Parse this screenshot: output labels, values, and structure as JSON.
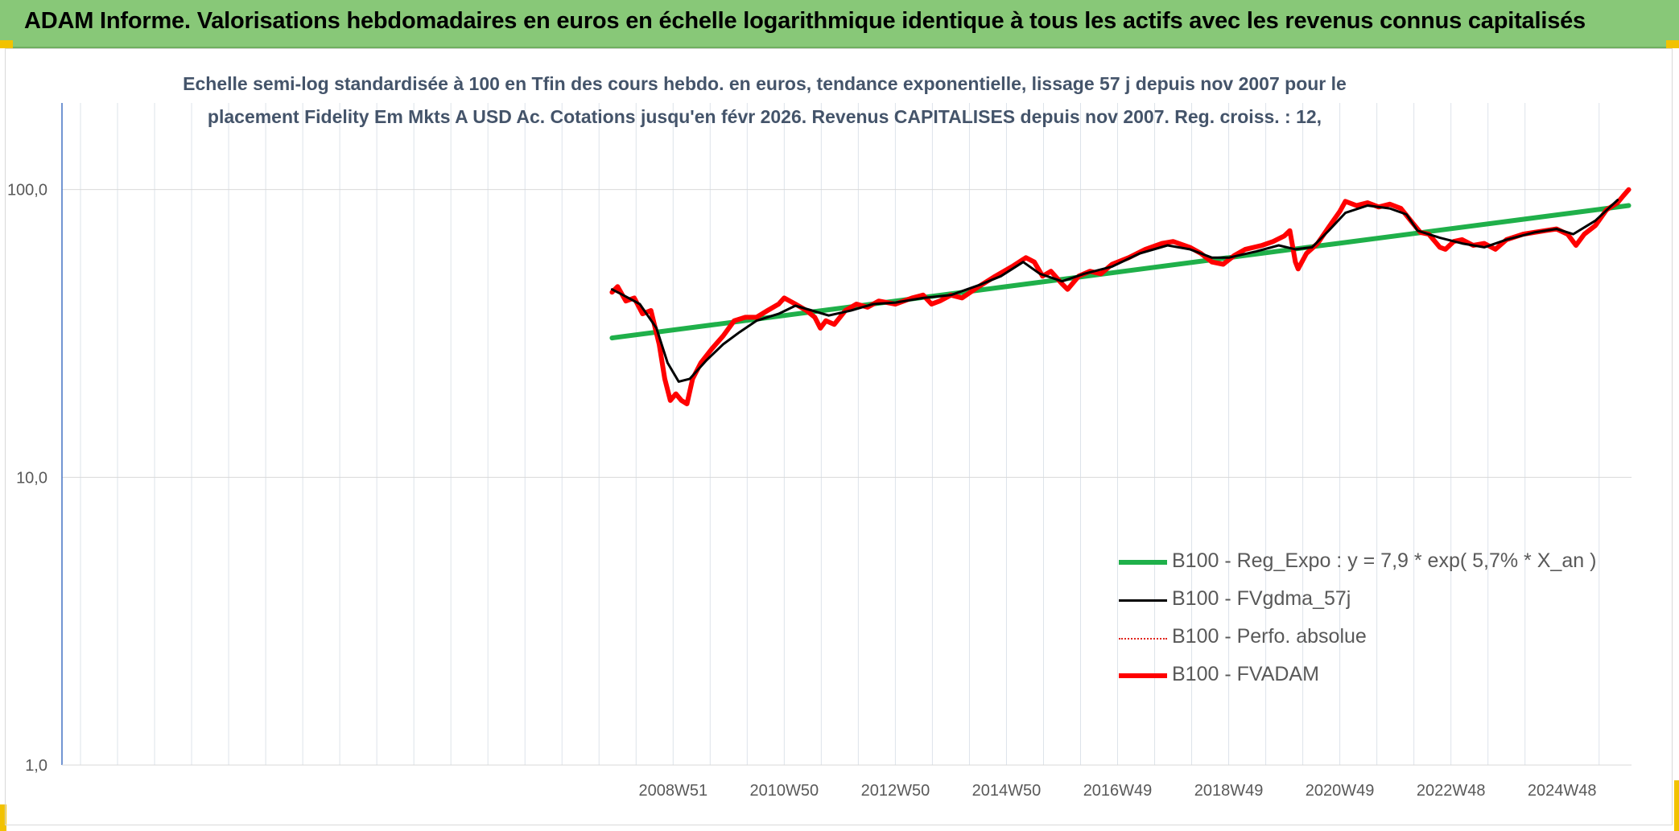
{
  "banner": {
    "title": "ADAM Informe. Valorisations hebdomadaires en euros en échelle logarithmique identique à tous les actifs avec les revenus connus capitalisés"
  },
  "chart_data": {
    "type": "line",
    "title_line1": "Echelle semi-log standardisée à 100 en Tfin des cours hebdo. en euros, tendance exponentielle, lissage 57 j depuis nov 2007 pour le",
    "title_line2": "placement Fidelity Em Mkts A USD Ac. Cotations jusqu'en févr 2026. Revenus CAPITALISES depuis nov 2007. Reg. croiss. : 12,",
    "y_scale": "log",
    "ylim": [
      1,
      200
    ],
    "y_ticks": [
      {
        "value": 100,
        "label": "100,0"
      },
      {
        "value": 10,
        "label": "10,0"
      },
      {
        "value": 1,
        "label": "1,0"
      }
    ],
    "x_range": [
      1998.0,
      2026.25
    ],
    "x_ticks": [
      {
        "x": 2009.0,
        "label": "2008W51"
      },
      {
        "x": 2011.0,
        "label": "2010W50"
      },
      {
        "x": 2013.0,
        "label": "2012W50"
      },
      {
        "x": 2015.0,
        "label": "2014W50"
      },
      {
        "x": 2017.0,
        "label": "2016W49"
      },
      {
        "x": 2019.0,
        "label": "2018W49"
      },
      {
        "x": 2021.0,
        "label": "2020W49"
      },
      {
        "x": 2023.0,
        "label": "2022W48"
      },
      {
        "x": 2025.0,
        "label": "2024W48"
      }
    ],
    "grid": true,
    "legend_position": "bottom-right",
    "series": [
      {
        "name": "B100 - Reg_Expo : y = 7,9 * exp( 5,7% *  X_an )",
        "color": "#1fb04a",
        "style": "solid-thick",
        "points": [
          [
            2007.9,
            30.5
          ],
          [
            2026.2,
            88.0
          ]
        ]
      },
      {
        "name": "B100 - FVgdma_57j",
        "color": "#000000",
        "style": "solid",
        "points": [
          [
            2007.9,
            45
          ],
          [
            2008.1,
            43
          ],
          [
            2008.4,
            40
          ],
          [
            2008.7,
            33
          ],
          [
            2008.9,
            25
          ],
          [
            2009.1,
            21.5
          ],
          [
            2009.3,
            22
          ],
          [
            2009.6,
            25.5
          ],
          [
            2009.9,
            29
          ],
          [
            2010.2,
            32
          ],
          [
            2010.5,
            35
          ],
          [
            2010.9,
            37
          ],
          [
            2011.2,
            39.5
          ],
          [
            2011.5,
            38
          ],
          [
            2011.8,
            36.5
          ],
          [
            2012.2,
            38
          ],
          [
            2012.6,
            40
          ],
          [
            2013.0,
            40.5
          ],
          [
            2013.5,
            42
          ],
          [
            2014.0,
            43
          ],
          [
            2014.5,
            46.5
          ],
          [
            2014.9,
            50
          ],
          [
            2015.3,
            56
          ],
          [
            2015.6,
            51
          ],
          [
            2016.0,
            48
          ],
          [
            2016.4,
            51
          ],
          [
            2016.9,
            54
          ],
          [
            2017.4,
            60
          ],
          [
            2017.9,
            64
          ],
          [
            2018.3,
            62
          ],
          [
            2018.7,
            58
          ],
          [
            2019.0,
            58
          ],
          [
            2019.5,
            61
          ],
          [
            2019.9,
            64
          ],
          [
            2020.2,
            62
          ],
          [
            2020.5,
            63
          ],
          [
            2020.8,
            72
          ],
          [
            2021.1,
            83
          ],
          [
            2021.5,
            88
          ],
          [
            2021.9,
            86
          ],
          [
            2022.2,
            82
          ],
          [
            2022.4,
            72
          ],
          [
            2022.8,
            68
          ],
          [
            2023.2,
            65
          ],
          [
            2023.6,
            63
          ],
          [
            2024.0,
            67
          ],
          [
            2024.5,
            71
          ],
          [
            2024.9,
            73
          ],
          [
            2025.2,
            70
          ],
          [
            2025.6,
            78
          ],
          [
            2026.0,
            92
          ]
        ]
      },
      {
        "name": "B100 - Perfo. absolue",
        "color": "#e0241b",
        "style": "dotted",
        "points": []
      },
      {
        "name": "B100 - FVADAM",
        "color": "#ff0000",
        "style": "solid-thick",
        "points": [
          [
            2007.9,
            44
          ],
          [
            2008.0,
            46
          ],
          [
            2008.15,
            41
          ],
          [
            2008.3,
            42
          ],
          [
            2008.45,
            37
          ],
          [
            2008.6,
            38
          ],
          [
            2008.75,
            29
          ],
          [
            2008.85,
            22
          ],
          [
            2008.95,
            18.5
          ],
          [
            2009.05,
            19.5
          ],
          [
            2009.15,
            18.5
          ],
          [
            2009.25,
            18
          ],
          [
            2009.35,
            22
          ],
          [
            2009.5,
            25
          ],
          [
            2009.7,
            28
          ],
          [
            2009.9,
            31
          ],
          [
            2010.1,
            35
          ],
          [
            2010.3,
            36
          ],
          [
            2010.5,
            36
          ],
          [
            2010.7,
            38
          ],
          [
            2010.9,
            40
          ],
          [
            2011.0,
            42
          ],
          [
            2011.2,
            40
          ],
          [
            2011.4,
            38
          ],
          [
            2011.55,
            36
          ],
          [
            2011.65,
            33
          ],
          [
            2011.75,
            35
          ],
          [
            2011.9,
            34
          ],
          [
            2012.1,
            38
          ],
          [
            2012.3,
            40
          ],
          [
            2012.5,
            39
          ],
          [
            2012.7,
            41
          ],
          [
            2013.0,
            40
          ],
          [
            2013.3,
            42
          ],
          [
            2013.5,
            43
          ],
          [
            2013.65,
            40
          ],
          [
            2013.8,
            41
          ],
          [
            2014.0,
            43
          ],
          [
            2014.2,
            42
          ],
          [
            2014.5,
            46
          ],
          [
            2014.8,
            50
          ],
          [
            2015.1,
            54
          ],
          [
            2015.35,
            58
          ],
          [
            2015.5,
            56
          ],
          [
            2015.65,
            50
          ],
          [
            2015.8,
            52
          ],
          [
            2016.0,
            47
          ],
          [
            2016.1,
            45
          ],
          [
            2016.3,
            50
          ],
          [
            2016.5,
            52
          ],
          [
            2016.7,
            51
          ],
          [
            2016.9,
            55
          ],
          [
            2017.2,
            58
          ],
          [
            2017.5,
            62
          ],
          [
            2017.8,
            65
          ],
          [
            2018.0,
            66
          ],
          [
            2018.3,
            63
          ],
          [
            2018.5,
            60
          ],
          [
            2018.7,
            56
          ],
          [
            2018.9,
            55
          ],
          [
            2019.1,
            59
          ],
          [
            2019.3,
            62
          ],
          [
            2019.6,
            64
          ],
          [
            2019.8,
            66
          ],
          [
            2020.0,
            69
          ],
          [
            2020.1,
            72
          ],
          [
            2020.2,
            56
          ],
          [
            2020.25,
            53
          ],
          [
            2020.4,
            60
          ],
          [
            2020.6,
            65
          ],
          [
            2020.8,
            74
          ],
          [
            2021.0,
            84
          ],
          [
            2021.1,
            91
          ],
          [
            2021.3,
            88
          ],
          [
            2021.5,
            90
          ],
          [
            2021.7,
            87
          ],
          [
            2021.9,
            89
          ],
          [
            2022.1,
            86
          ],
          [
            2022.3,
            77
          ],
          [
            2022.45,
            71
          ],
          [
            2022.6,
            70
          ],
          [
            2022.8,
            63
          ],
          [
            2022.9,
            62
          ],
          [
            2023.05,
            66
          ],
          [
            2023.2,
            67
          ],
          [
            2023.4,
            64
          ],
          [
            2023.6,
            65
          ],
          [
            2023.8,
            62
          ],
          [
            2024.0,
            67
          ],
          [
            2024.3,
            70
          ],
          [
            2024.5,
            71
          ],
          [
            2024.7,
            72
          ],
          [
            2024.9,
            73
          ],
          [
            2025.1,
            70
          ],
          [
            2025.25,
            64
          ],
          [
            2025.4,
            70
          ],
          [
            2025.6,
            75
          ],
          [
            2025.8,
            85
          ],
          [
            2026.0,
            90
          ],
          [
            2026.1,
            95
          ],
          [
            2026.2,
            100
          ]
        ]
      }
    ]
  }
}
